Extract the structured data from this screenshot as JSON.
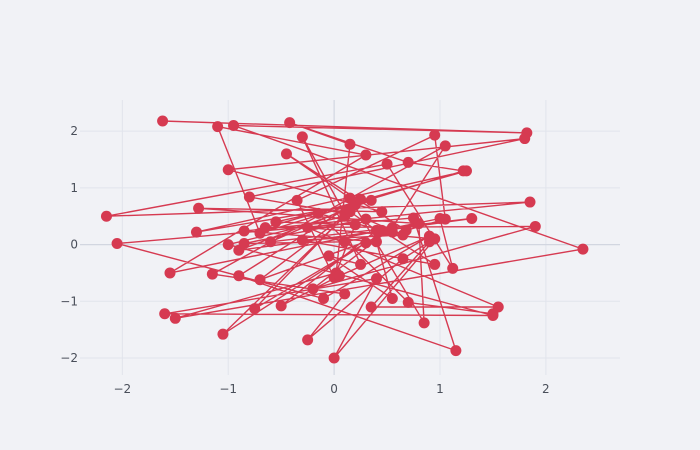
{
  "chart_data": {
    "type": "scatter",
    "mode": "lines+markers",
    "title": "",
    "xlabel": "",
    "ylabel": "",
    "xlim": [
      -2.4,
      2.7
    ],
    "ylim": [
      -2.3,
      2.55
    ],
    "xticks": [
      -2,
      -1,
      0,
      1,
      2
    ],
    "yticks": [
      -2,
      -1,
      0,
      1,
      2
    ],
    "xtick_labels": [
      "−2",
      "−1",
      "0",
      "1",
      "2"
    ],
    "ytick_labels": [
      "−2",
      "−1",
      "0",
      "1",
      "2"
    ],
    "grid": true,
    "legend": "none",
    "colors": {
      "series": "#d63a51",
      "background": "#f1f2f6",
      "grid": "#e1e4ec"
    },
    "series": [
      {
        "x": [
          -1.62,
          1.82,
          -0.95,
          2.35,
          -1.5,
          0.02,
          0.15,
          -0.42,
          0.7,
          1.22,
          -0.7,
          -1.1,
          0.3,
          -1.55,
          1.0,
          1.12,
          0.5,
          -2.15,
          1.85,
          -0.85,
          0.4,
          0.55,
          -0.05,
          0.25,
          -0.3,
          0.1,
          -0.8,
          1.8,
          -1.0,
          0.45,
          -1.28,
          0.8,
          0.85,
          0.15,
          -0.45,
          0.68,
          1.05,
          0.95,
          -0.35,
          0.0,
          0.2,
          -0.55,
          0.35,
          -0.9,
          1.3,
          -0.6,
          0.2,
          -1.3,
          1.25,
          -0.65,
          1.9,
          -0.2,
          0.55,
          1.05,
          -1.15,
          0.1,
          -0.25,
          0.65,
          0.9,
          0.35,
          1.55,
          -0.25,
          0.95,
          0.0,
          0.4,
          -1.6,
          1.5,
          -1.0,
          0.1,
          -1.05,
          0.3,
          -0.75,
          0.25,
          -0.9,
          1.15,
          0.75,
          -2.05,
          -0.1,
          0.9,
          0.05,
          -0.5,
          0.4,
          0.15,
          -0.7,
          0.55,
          0.1,
          -0.85,
          0.3,
          0.65,
          -0.3,
          0.95,
          0.45,
          -0.15,
          0.7,
          1.5
        ],
        "y": [
          2.18,
          1.97,
          2.1,
          -0.08,
          -1.3,
          -0.5,
          1.77,
          2.15,
          1.45,
          1.3,
          0.2,
          2.08,
          1.58,
          -0.5,
          0.46,
          -0.42,
          1.42,
          0.5,
          0.75,
          0.24,
          0.05,
          -0.95,
          -0.2,
          -0.35,
          1.9,
          0.55,
          0.84,
          1.87,
          1.32,
          0.58,
          0.64,
          0.37,
          -1.38,
          0.82,
          1.6,
          0.25,
          0.45,
          1.93,
          0.78,
          -0.58,
          0.35,
          0.4,
          0.78,
          -0.1,
          0.46,
          0.05,
          0.7,
          0.22,
          1.3,
          0.3,
          0.32,
          -0.78,
          0.3,
          1.74,
          -0.52,
          -0.87,
          -1.68,
          -0.25,
          0.05,
          -1.1,
          -1.1,
          0.3,
          0.1,
          -2.0,
          -0.6,
          -1.22,
          -1.25,
          0.0,
          0.5,
          -1.58,
          0.03,
          -1.13,
          0.8,
          -0.55,
          -1.87,
          0.47,
          0.02,
          -0.95,
          0.15,
          -0.55,
          -1.08,
          0.25,
          0.58,
          -0.62,
          0.22,
          0.05,
          0.02,
          0.45,
          0.17,
          0.08,
          -0.35,
          0.25,
          0.55,
          -1.02,
          -1.22
        ]
      }
    ]
  }
}
